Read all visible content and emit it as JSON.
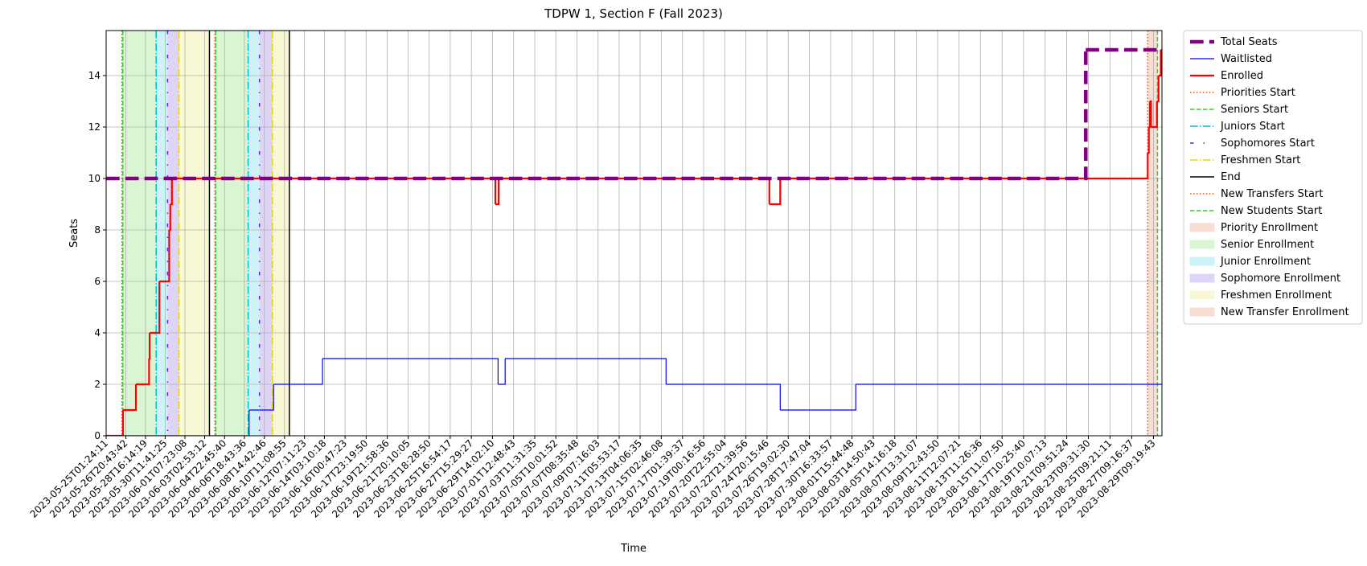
{
  "chart_data": {
    "type": "step",
    "title": "TDPW 1, Section F (Fall 2023)",
    "xlabel": "Time",
    "ylabel": "Seats",
    "grid": true,
    "legend": "outside upper right",
    "xlim": [
      "2023-05-25T01:24:11",
      "2023-08-30T04:00:00"
    ],
    "ylim": [
      0,
      15.75
    ],
    "yticks": [
      0,
      2,
      4,
      6,
      8,
      10,
      12,
      14
    ],
    "xticks": [
      "2023-05-25T01:24:11",
      "2023-05-26T20:43:42",
      "2023-05-28T16:14:19",
      "2023-05-30T11:41:25",
      "2023-06-01T07:23:08",
      "2023-06-03T02:53:12",
      "2023-06-04T22:45:40",
      "2023-06-06T18:43:36",
      "2023-06-08T14:42:46",
      "2023-06-10T11:08:55",
      "2023-06-12T07:11:23",
      "2023-06-14T03:10:18",
      "2023-06-16T00:47:23",
      "2023-06-17T23:19:50",
      "2023-06-19T21:58:36",
      "2023-06-21T20:10:05",
      "2023-06-23T18:28:50",
      "2023-06-25T16:54:17",
      "2023-06-27T15:29:27",
      "2023-06-29T14:02:10",
      "2023-07-01T12:48:43",
      "2023-07-03T11:31:35",
      "2023-07-05T10:01:52",
      "2023-07-07T08:35:48",
      "2023-07-09T07:16:03",
      "2023-07-11T05:53:17",
      "2023-07-13T04:06:35",
      "2023-07-15T02:46:08",
      "2023-07-17T01:39:37",
      "2023-07-19T00:16:56",
      "2023-07-20T22:55:04",
      "2023-07-22T21:39:56",
      "2023-07-24T20:15:46",
      "2023-07-26T19:02:30",
      "2023-07-28T17:47:04",
      "2023-07-30T16:33:57",
      "2023-08-01T15:44:48",
      "2023-08-03T14:50:43",
      "2023-08-05T14:16:18",
      "2023-08-07T13:31:07",
      "2023-08-09T12:43:50",
      "2023-08-11T12:07:21",
      "2023-08-13T11:26:36",
      "2023-08-15T11:07:50",
      "2023-08-17T10:25:40",
      "2023-08-19T10:07:13",
      "2023-08-21T09:51:24",
      "2023-08-23T09:31:30",
      "2023-08-25T09:21:11",
      "2023-08-27T09:16:37",
      "2023-08-29T09:19:43"
    ],
    "series": [
      {
        "name": "Total Seats",
        "color": "#800080",
        "linestyle": "dashed",
        "linewidth": 4.5,
        "zorder": 3,
        "x": [
          "2023-05-25T01:24:11",
          "2023-08-23T03:50:00",
          "2023-08-30T04:00:00"
        ],
        "values": [
          10,
          15,
          15
        ]
      },
      {
        "name": "Waitlisted",
        "color": "#0000ff",
        "linestyle": "solid",
        "linewidth": 1.2,
        "zorder": 1,
        "x": [
          "2023-05-25T01:24:11",
          "2023-06-07T05:00:00",
          "2023-06-09T11:00:00",
          "2023-06-13T23:00:00",
          "2023-06-30T02:35:00",
          "2023-06-30T18:10:00",
          "2023-07-15T13:25:00",
          "2023-07-26T01:24:00",
          "2023-08-02T00:10:00",
          "2023-08-30T04:00:00"
        ],
        "values": [
          0,
          1,
          2,
          3,
          2,
          3,
          2,
          1,
          2,
          2
        ]
      },
      {
        "name": "Enrolled",
        "color": "#ff0000",
        "linestyle": "solid",
        "linewidth": 2.2,
        "zorder": 2,
        "x": [
          "2023-05-25T01:24:11",
          "2023-05-26T14:35:00",
          "2023-05-27T19:10:00",
          "2023-05-29T00:10:00",
          "2023-05-29T01:24:00",
          "2023-05-29T23:00:00",
          "2023-05-30T20:35:00",
          "2023-05-30T23:00:00",
          "2023-05-31T02:35:00",
          "2023-06-29T20:35:00",
          "2023-06-30T03:50:00",
          "2023-07-25T01:24:00",
          "2023-07-26T01:24:00",
          "2023-08-28T20:35:00",
          "2023-08-28T23:00:00",
          "2023-08-29T01:24:00",
          "2023-08-29T03:50:00",
          "2023-08-29T17:00:00",
          "2023-08-29T20:35:00",
          "2023-08-30T01:24:00",
          "2023-08-30T04:00:00"
        ],
        "values": [
          0,
          1,
          2,
          3,
          4,
          6,
          8,
          9,
          10,
          9,
          10,
          9,
          10,
          11,
          12,
          13,
          12,
          13,
          14,
          15,
          15
        ]
      }
    ],
    "vlines": [
      {
        "name": "Priorities Start",
        "color": "#ff4500",
        "linestyle": "dotted",
        "x": [
          "2023-05-26T12:12:00",
          "2023-06-04T01:25:00"
        ]
      },
      {
        "name": "Seniors Start",
        "color": "#32cd32",
        "linestyle": "dashed",
        "x": [
          "2023-05-26T14:10:00",
          "2023-06-04T03:20:00"
        ]
      },
      {
        "name": "Juniors Start",
        "color": "#00bcd4",
        "linestyle": "dashdot",
        "x": [
          "2023-05-29T15:50:00",
          "2023-06-07T02:50:00"
        ]
      },
      {
        "name": "Sophomores Start",
        "color": "#6a1fd8",
        "linestyle": "loosedashdot",
        "x": [
          "2023-05-30T17:00:00",
          "2023-06-08T03:50:00"
        ]
      },
      {
        "name": "Freshmen Start",
        "color": "#e6d800",
        "linestyle": "dashdot",
        "x": [
          "2023-05-31T18:10:00",
          "2023-06-09T08:35:00"
        ]
      },
      {
        "name": "End",
        "color": "#000000",
        "linestyle": "solid",
        "x": [
          "2023-06-03T13:25:00",
          "2023-06-10T21:50:00"
        ]
      },
      {
        "name": "New Transfers Start",
        "color": "#ff4500",
        "linestyle": "dotted",
        "x": [
          "2023-08-28T20:35:00"
        ]
      },
      {
        "name": "New Students Start",
        "color": "#32cd32",
        "linestyle": "dashed",
        "x": [
          "2023-08-29T18:10:00"
        ]
      }
    ],
    "spans": [
      {
        "name": "Priority Enrollment",
        "color": "#f9dcd2",
        "ranges": [
          [
            "2023-05-26T12:12:00",
            "2023-05-26T15:50:00"
          ],
          [
            "2023-06-04T01:25:00",
            "2023-06-04T06:10:00"
          ]
        ]
      },
      {
        "name": "Senior Enrollment",
        "color": "#d9f5d1",
        "ranges": [
          [
            "2023-05-26T15:50:00",
            "2023-05-29T15:50:00"
          ],
          [
            "2023-06-04T06:10:00",
            "2023-06-07T02:50:00"
          ]
        ]
      },
      {
        "name": "Junior Enrollment",
        "color": "#cdf2f7",
        "ranges": [
          [
            "2023-05-29T15:50:00",
            "2023-05-30T17:00:00"
          ],
          [
            "2023-06-07T02:50:00",
            "2023-06-08T03:50:00"
          ]
        ]
      },
      {
        "name": "Sophomore Enrollment",
        "color": "#ddd4f7",
        "ranges": [
          [
            "2023-05-30T17:00:00",
            "2023-05-31T18:10:00"
          ],
          [
            "2023-06-08T03:50:00",
            "2023-06-09T08:35:00"
          ]
        ]
      },
      {
        "name": "Freshmen Enrollment",
        "color": "#f8f8d4",
        "ranges": [
          [
            "2023-05-31T18:10:00",
            "2023-06-03T13:25:00"
          ],
          [
            "2023-06-09T08:35:00",
            "2023-06-10T21:50:00"
          ]
        ]
      },
      {
        "name": "New Transfer Enrollment",
        "color": "#f9dcd2",
        "ranges": [
          [
            "2023-08-28T20:35:00",
            "2023-08-29T18:10:00"
          ]
        ]
      }
    ]
  }
}
